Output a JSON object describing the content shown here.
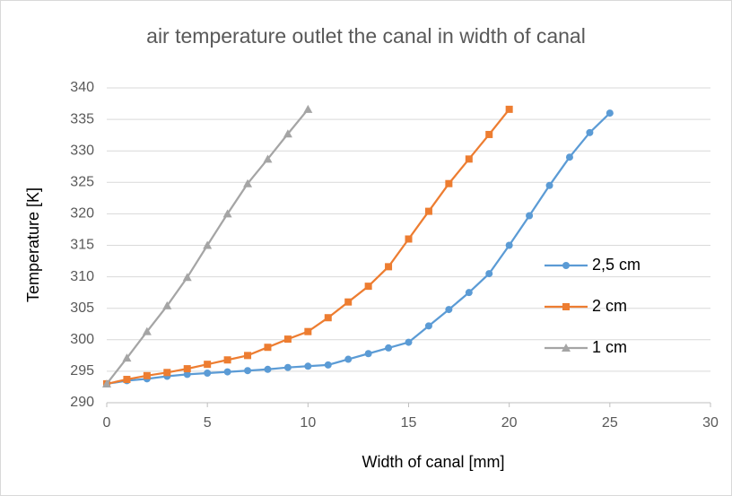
{
  "chart_data": {
    "type": "line",
    "title": "air temperature outlet the canal in width of canal",
    "x_label": "Width of canal [mm]",
    "y_label": "Temperature [K]",
    "xlim": [
      0,
      30
    ],
    "xticks": [
      0,
      5,
      10,
      15,
      20,
      25,
      30
    ],
    "ylim": [
      290,
      340
    ],
    "yticks": [
      290,
      295,
      300,
      305,
      310,
      315,
      320,
      325,
      330,
      335,
      340
    ],
    "grid": true,
    "legend": "right",
    "series": [
      {
        "name": "2,5 cm",
        "color": "#5b9bd5",
        "marker": "circle",
        "x": [
          0,
          1,
          2,
          3,
          4,
          5,
          6,
          7,
          8,
          9,
          10,
          11,
          12,
          13,
          14,
          15,
          16,
          17,
          18,
          19,
          20,
          21,
          22,
          23,
          24,
          25
        ],
        "values": [
          293,
          293.5,
          293.8,
          294.2,
          294.5,
          294.7,
          294.9,
          295.1,
          295.3,
          295.6,
          295.8,
          296,
          296.9,
          297.8,
          298.7,
          299.6,
          302.2,
          304.8,
          307.5,
          310.5,
          315,
          319.7,
          324.5,
          329,
          332.9,
          336
        ]
      },
      {
        "name": "2 cm",
        "color": "#ed7d31",
        "marker": "square",
        "x": [
          0,
          1,
          2,
          3,
          4,
          5,
          6,
          7,
          8,
          9,
          10,
          11,
          12,
          13,
          14,
          15,
          16,
          17,
          18,
          19,
          20
        ],
        "values": [
          293,
          293.7,
          294.3,
          294.8,
          295.4,
          296.1,
          296.8,
          297.5,
          298.8,
          300.1,
          301.3,
          303.5,
          306,
          308.5,
          311.6,
          316,
          320.4,
          324.8,
          328.7,
          332.6,
          336.6
        ]
      },
      {
        "name": "1 cm",
        "color": "#a5a5a5",
        "marker": "triangle",
        "x": [
          0,
          1,
          2,
          3,
          4,
          5,
          6,
          7,
          8,
          9,
          10
        ],
        "values": [
          293,
          297.1,
          301.3,
          305.4,
          309.9,
          315,
          320,
          324.8,
          328.7,
          332.7,
          336.6
        ]
      }
    ]
  }
}
